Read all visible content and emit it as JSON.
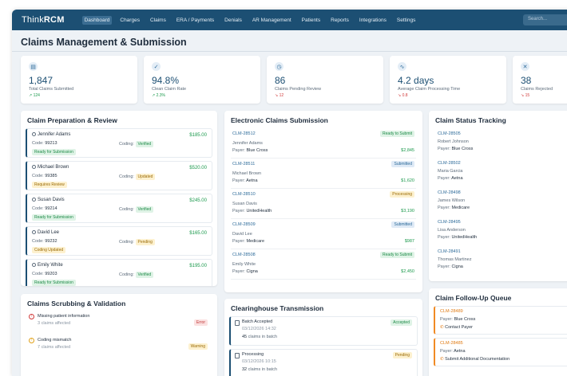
{
  "app": {
    "logo_light": "Think",
    "logo_bold": "RCM"
  },
  "nav": {
    "items": [
      "Dashboard",
      "Charges",
      "Claims",
      "ERA / Payments",
      "Denials",
      "AR Management",
      "Patients",
      "Reports",
      "Integrations",
      "Settings"
    ],
    "search_placeholder": "Search..."
  },
  "page": {
    "title": "Claims Management & Submission"
  },
  "stats": [
    {
      "icon": "document-icon",
      "value": "1,847",
      "label": "Total Claims Submitted",
      "trend": "↗ 124",
      "trend_dir": "up"
    },
    {
      "icon": "check-circle-icon",
      "value": "94.8%",
      "label": "Clean Claim Rate",
      "trend": "↗ 2.3%",
      "trend_dir": "up"
    },
    {
      "icon": "clock-icon",
      "value": "86",
      "label": "Claims Pending Review",
      "trend": "↘ 12",
      "trend_dir": "down"
    },
    {
      "icon": "activity-icon",
      "value": "4.2 days",
      "label": "Average Claim Processing Time",
      "trend": "↘ 0.8",
      "trend_dir": "down"
    },
    {
      "icon": "x-circle-icon",
      "value": "38",
      "label": "Claims Rejected",
      "trend": "↘ 15",
      "trend_dir": "down"
    }
  ],
  "prep": {
    "title": "Claim Preparation & Review",
    "code_label": "Code:",
    "coding_label": "Coding:",
    "items": [
      {
        "name": "Jennifer Adams",
        "amount": "$185.00",
        "code": "99213",
        "coding": "Verified",
        "coding_color": "green",
        "status": "Ready for Submission",
        "status_color": "green"
      },
      {
        "name": "Michael Brown",
        "amount": "$520.00",
        "code": "99385",
        "coding": "Updated",
        "coding_color": "yellow",
        "status": "Requires Review",
        "status_color": "yellow"
      },
      {
        "name": "Susan Davis",
        "amount": "$245.00",
        "code": "99214",
        "coding": "Verified",
        "coding_color": "green",
        "status": "Ready for Submission",
        "status_color": "green"
      },
      {
        "name": "David Lee",
        "amount": "$165.00",
        "code": "99232",
        "coding": "Pending",
        "coding_color": "yellow",
        "status": "Coding Updated",
        "status_color": "yellow"
      },
      {
        "name": "Emily White",
        "amount": "$195.00",
        "code": "99203",
        "coding": "Verified",
        "coding_color": "green",
        "status": "Ready for Submission",
        "status_color": "green"
      }
    ]
  },
  "electronic": {
    "title": "Electronic Claims Submission",
    "payer_label": "Payer:",
    "items": [
      {
        "id": "CLM-28512",
        "badge": "Ready to Submit",
        "badge_color": "green",
        "name": "Jennifer Adams",
        "payer": "Blue Cross",
        "amount": "$2,845"
      },
      {
        "id": "CLM-28511",
        "badge": "Submitted",
        "badge_color": "blue",
        "name": "Michael Brown",
        "payer": "Aetna",
        "amount": "$1,620"
      },
      {
        "id": "CLM-28510",
        "badge": "Processing",
        "badge_color": "yellow",
        "name": "Susan Davis",
        "payer": "UnitedHealth",
        "amount": "$3,190"
      },
      {
        "id": "CLM-28509",
        "badge": "Submitted",
        "badge_color": "blue",
        "name": "David Lee",
        "payer": "Medicare",
        "amount": "$987"
      },
      {
        "id": "CLM-28508",
        "badge": "Ready to Submit",
        "badge_color": "green",
        "name": "Emily White",
        "payer": "Cigna",
        "amount": "$2,450"
      }
    ]
  },
  "status_tracking": {
    "title": "Claim Status Tracking",
    "payer_label": "Payer:",
    "items": [
      {
        "id": "CLM-28505",
        "name": "Robert Johnson",
        "payer": "Blue Cross"
      },
      {
        "id": "CLM-28502",
        "name": "Maria Garcia",
        "payer": "Aetna"
      },
      {
        "id": "CLM-28498",
        "name": "James Wilson",
        "payer": "Medicare"
      },
      {
        "id": "CLM-28495",
        "name": "Lisa Anderson",
        "payer": "UnitedHealth"
      },
      {
        "id": "CLM-28491",
        "name": "Thomas Martinez",
        "payer": "Cigna"
      }
    ]
  },
  "scrubbing": {
    "title": "Claims Scrubbing & Validation",
    "items": [
      {
        "title": "Missing patient information",
        "sub": "3 claims affected",
        "badge": "Error",
        "badge_color": "red",
        "icon_color": "#d13b3b"
      },
      {
        "title": "Coding mismatch",
        "sub": "7 claims affected",
        "badge": "Warning",
        "badge_color": "yellow",
        "icon_color": "#e0a11a"
      }
    ]
  },
  "clearinghouse": {
    "title": "Clearinghouse Transmission",
    "count_suffix": "claims in batch",
    "items": [
      {
        "title": "Batch Accepted",
        "date": "03/12/2026 14:32",
        "count": "45",
        "badge": "Accepted",
        "badge_color": "green"
      },
      {
        "title": "Processing",
        "date": "03/12/2026 10:15",
        "count": "32",
        "badge": "Pending",
        "badge_color": "yellow"
      }
    ]
  },
  "followup": {
    "title": "Claim Follow-Up Queue",
    "payer_label": "Payer:",
    "items": [
      {
        "id": "CLM-28489",
        "payer": "Blue Cross",
        "action": "Contact Payer"
      },
      {
        "id": "CLM-28485",
        "payer": "Aetna",
        "action": "Submit Additional Documentation"
      }
    ]
  }
}
